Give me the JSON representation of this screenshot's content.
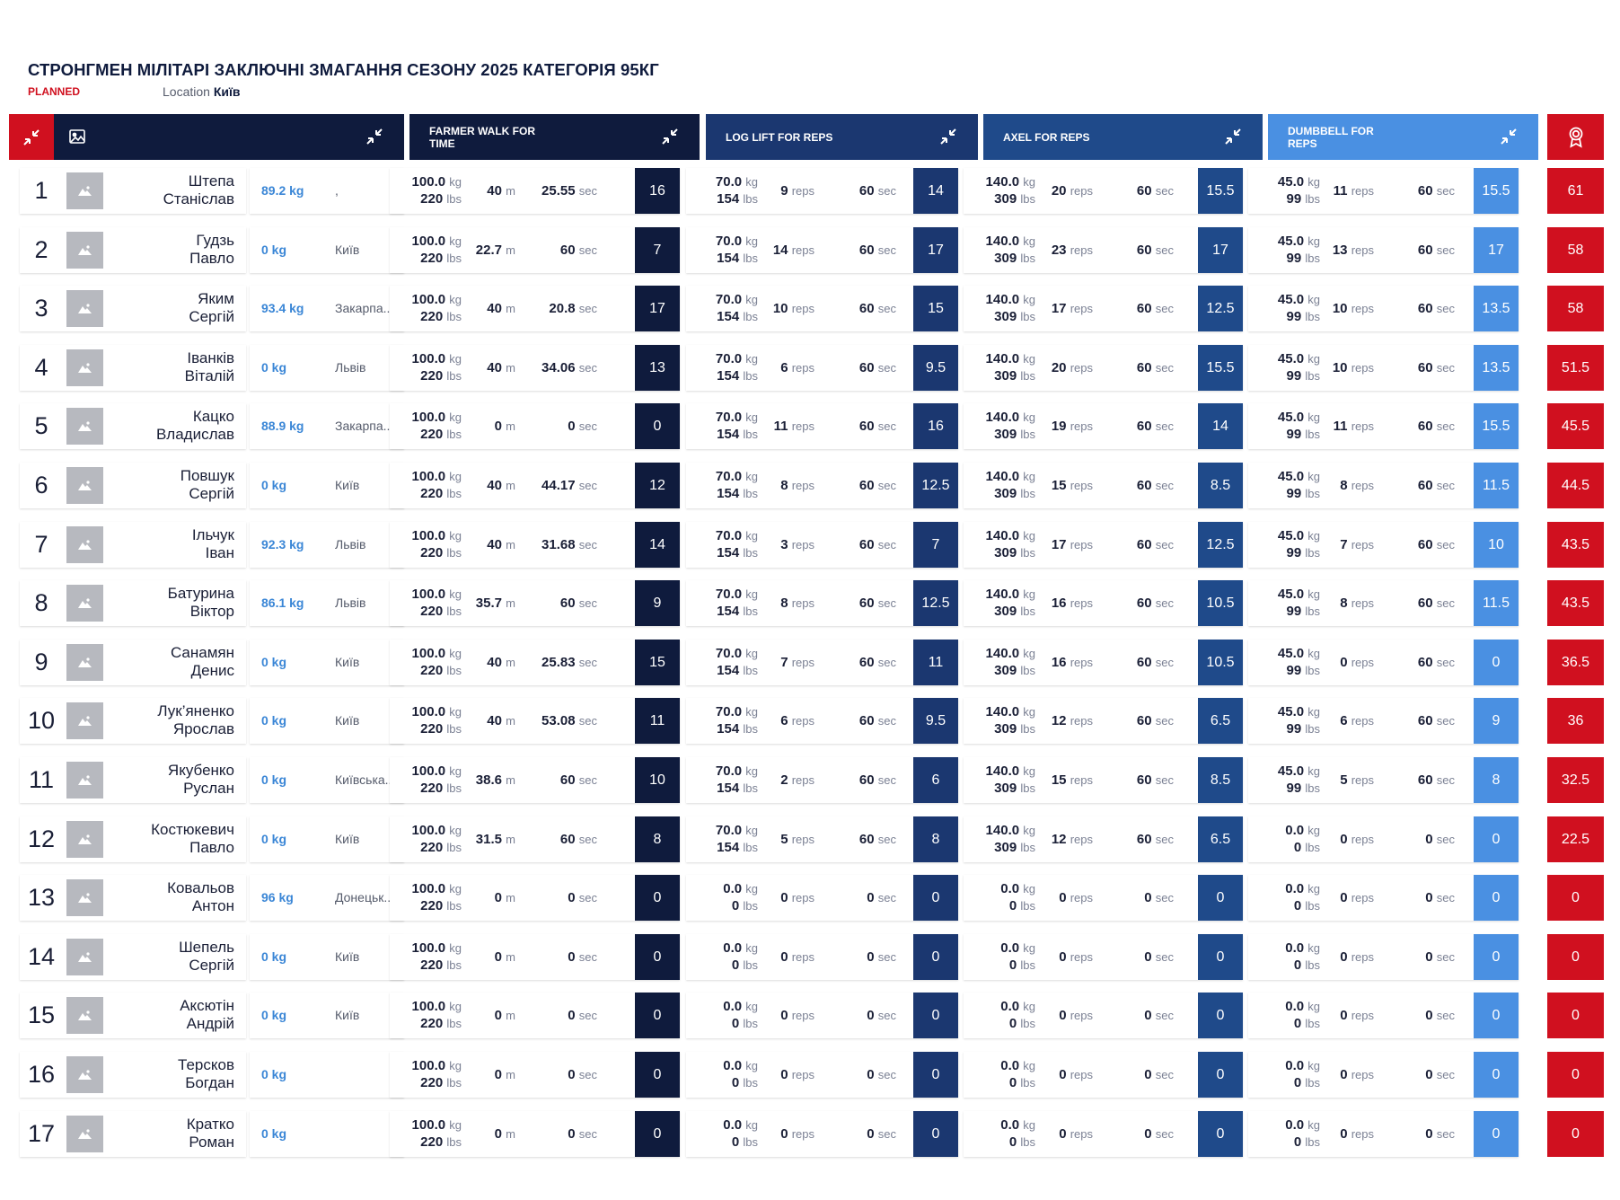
{
  "header": {
    "title": "СТРОНГМЕН МІЛІТАРІ ЗАКЛЮЧНІ ЗМАГАННЯ СЕЗОНУ 2025 КАТЕГОРІЯ 95КГ",
    "status": "PLANNED",
    "location_label": "Location",
    "location_value": "Київ"
  },
  "colors": {
    "navy": "#0f1b3d",
    "blue2": "#1b3770",
    "blue3": "#1f4a8a",
    "blue4": "#4a90e2",
    "red": "#d0101f",
    "weight_blue": "#3a86d6"
  },
  "icons": {
    "collapse": "collapse-arrows-icon",
    "image": "image-icon",
    "award": "award-ribbon-icon",
    "avatar": "avatar-placeholder-icon"
  },
  "events": [
    {
      "label": "FARMER WALK FOR TIME",
      "u1": "m",
      "u2": "sec"
    },
    {
      "label": "LOG LIFT FOR REPS",
      "u1": "reps",
      "u2": "sec"
    },
    {
      "label": "AXEL FOR REPS",
      "u1": "reps",
      "u2": "sec"
    },
    {
      "label": "DUMBBELL FOR REPS",
      "u1": "reps",
      "u2": "sec"
    }
  ],
  "units": {
    "kg": "kg",
    "lbs": "lbs"
  },
  "athletes": [
    {
      "rank": "1",
      "surname": "Штепа",
      "firstname": "Станіслав",
      "bw": "89.2 kg",
      "city": ",",
      "e": [
        [
          "100.0",
          "220",
          "40",
          "25.55",
          "16"
        ],
        [
          "70.0",
          "154",
          "9",
          "60",
          "14"
        ],
        [
          "140.0",
          "309",
          "20",
          "60",
          "15.5"
        ],
        [
          "45.0",
          "99",
          "11",
          "60",
          "15.5"
        ]
      ],
      "total": "61"
    },
    {
      "rank": "2",
      "surname": "Гудзь",
      "firstname": "Павло",
      "bw": "0 kg",
      "city": "Київ",
      "e": [
        [
          "100.0",
          "220",
          "22.7",
          "60",
          "7"
        ],
        [
          "70.0",
          "154",
          "14",
          "60",
          "17"
        ],
        [
          "140.0",
          "309",
          "23",
          "60",
          "17"
        ],
        [
          "45.0",
          "99",
          "13",
          "60",
          "17"
        ]
      ],
      "total": "58"
    },
    {
      "rank": "3",
      "surname": "Яким",
      "firstname": "Сергій",
      "bw": "93.4 kg",
      "city": "Закарпа...",
      "e": [
        [
          "100.0",
          "220",
          "40",
          "20.8",
          "17"
        ],
        [
          "70.0",
          "154",
          "10",
          "60",
          "15"
        ],
        [
          "140.0",
          "309",
          "17",
          "60",
          "12.5"
        ],
        [
          "45.0",
          "99",
          "10",
          "60",
          "13.5"
        ]
      ],
      "total": "58"
    },
    {
      "rank": "4",
      "surname": "Іванків",
      "firstname": "Віталій",
      "bw": "0 kg",
      "city": "Львів",
      "e": [
        [
          "100.0",
          "220",
          "40",
          "34.06",
          "13"
        ],
        [
          "70.0",
          "154",
          "6",
          "60",
          "9.5"
        ],
        [
          "140.0",
          "309",
          "20",
          "60",
          "15.5"
        ],
        [
          "45.0",
          "99",
          "10",
          "60",
          "13.5"
        ]
      ],
      "total": "51.5"
    },
    {
      "rank": "5",
      "surname": "Кацко",
      "firstname": "Владислав",
      "bw": "88.9 kg",
      "city": "Закарпа...",
      "e": [
        [
          "100.0",
          "220",
          "0",
          "0",
          "0"
        ],
        [
          "70.0",
          "154",
          "11",
          "60",
          "16"
        ],
        [
          "140.0",
          "309",
          "19",
          "60",
          "14"
        ],
        [
          "45.0",
          "99",
          "11",
          "60",
          "15.5"
        ]
      ],
      "total": "45.5"
    },
    {
      "rank": "6",
      "surname": "Повшук",
      "firstname": "Сергій",
      "bw": "0 kg",
      "city": "Київ",
      "e": [
        [
          "100.0",
          "220",
          "40",
          "44.17",
          "12"
        ],
        [
          "70.0",
          "154",
          "8",
          "60",
          "12.5"
        ],
        [
          "140.0",
          "309",
          "15",
          "60",
          "8.5"
        ],
        [
          "45.0",
          "99",
          "8",
          "60",
          "11.5"
        ]
      ],
      "total": "44.5"
    },
    {
      "rank": "7",
      "surname": "Ільчук",
      "firstname": "Іван",
      "bw": "92.3 kg",
      "city": "Львів",
      "e": [
        [
          "100.0",
          "220",
          "40",
          "31.68",
          "14"
        ],
        [
          "70.0",
          "154",
          "3",
          "60",
          "7"
        ],
        [
          "140.0",
          "309",
          "17",
          "60",
          "12.5"
        ],
        [
          "45.0",
          "99",
          "7",
          "60",
          "10"
        ]
      ],
      "total": "43.5"
    },
    {
      "rank": "8",
      "surname": "Батурина",
      "firstname": "Віктор",
      "bw": "86.1 kg",
      "city": "Львів",
      "e": [
        [
          "100.0",
          "220",
          "35.7",
          "60",
          "9"
        ],
        [
          "70.0",
          "154",
          "8",
          "60",
          "12.5"
        ],
        [
          "140.0",
          "309",
          "16",
          "60",
          "10.5"
        ],
        [
          "45.0",
          "99",
          "8",
          "60",
          "11.5"
        ]
      ],
      "total": "43.5"
    },
    {
      "rank": "9",
      "surname": "Санамян",
      "firstname": "Денис",
      "bw": "0 kg",
      "city": "Київ",
      "e": [
        [
          "100.0",
          "220",
          "40",
          "25.83",
          "15"
        ],
        [
          "70.0",
          "154",
          "7",
          "60",
          "11"
        ],
        [
          "140.0",
          "309",
          "16",
          "60",
          "10.5"
        ],
        [
          "45.0",
          "99",
          "0",
          "60",
          "0"
        ]
      ],
      "total": "36.5"
    },
    {
      "rank": "10",
      "surname": "Лук’яненко",
      "firstname": "Ярослав",
      "bw": "0 kg",
      "city": "Київ",
      "e": [
        [
          "100.0",
          "220",
          "40",
          "53.08",
          "11"
        ],
        [
          "70.0",
          "154",
          "6",
          "60",
          "9.5"
        ],
        [
          "140.0",
          "309",
          "12",
          "60",
          "6.5"
        ],
        [
          "45.0",
          "99",
          "6",
          "60",
          "9"
        ]
      ],
      "total": "36"
    },
    {
      "rank": "11",
      "surname": "Якубенко",
      "firstname": "Руслан",
      "bw": "0 kg",
      "city": "Київська...",
      "e": [
        [
          "100.0",
          "220",
          "38.6",
          "60",
          "10"
        ],
        [
          "70.0",
          "154",
          "2",
          "60",
          "6"
        ],
        [
          "140.0",
          "309",
          "15",
          "60",
          "8.5"
        ],
        [
          "45.0",
          "99",
          "5",
          "60",
          "8"
        ]
      ],
      "total": "32.5"
    },
    {
      "rank": "12",
      "surname": "Костюкевич",
      "firstname": "Павло",
      "bw": "0 kg",
      "city": "Київ",
      "e": [
        [
          "100.0",
          "220",
          "31.5",
          "60",
          "8"
        ],
        [
          "70.0",
          "154",
          "5",
          "60",
          "8"
        ],
        [
          "140.0",
          "309",
          "12",
          "60",
          "6.5"
        ],
        [
          "0.0",
          "0",
          "0",
          "0",
          "0"
        ]
      ],
      "total": "22.5"
    },
    {
      "rank": "13",
      "surname": "Ковальов",
      "firstname": "Антон",
      "bw": "96 kg",
      "city": "Донецьк...",
      "e": [
        [
          "100.0",
          "220",
          "0",
          "0",
          "0"
        ],
        [
          "0.0",
          "0",
          "0",
          "0",
          "0"
        ],
        [
          "0.0",
          "0",
          "0",
          "0",
          "0"
        ],
        [
          "0.0",
          "0",
          "0",
          "0",
          "0"
        ]
      ],
      "total": "0"
    },
    {
      "rank": "14",
      "surname": "Шепель",
      "firstname": "Сергій",
      "bw": "0 kg",
      "city": "Київ",
      "e": [
        [
          "100.0",
          "220",
          "0",
          "0",
          "0"
        ],
        [
          "0.0",
          "0",
          "0",
          "0",
          "0"
        ],
        [
          "0.0",
          "0",
          "0",
          "0",
          "0"
        ],
        [
          "0.0",
          "0",
          "0",
          "0",
          "0"
        ]
      ],
      "total": "0"
    },
    {
      "rank": "15",
      "surname": "Аксютін",
      "firstname": "Андрій",
      "bw": "0 kg",
      "city": "Київ",
      "e": [
        [
          "100.0",
          "220",
          "0",
          "0",
          "0"
        ],
        [
          "0.0",
          "0",
          "0",
          "0",
          "0"
        ],
        [
          "0.0",
          "0",
          "0",
          "0",
          "0"
        ],
        [
          "0.0",
          "0",
          "0",
          "0",
          "0"
        ]
      ],
      "total": "0"
    },
    {
      "rank": "16",
      "surname": "Терсков",
      "firstname": "Богдан",
      "bw": "0 kg",
      "city": "",
      "e": [
        [
          "100.0",
          "220",
          "0",
          "0",
          "0"
        ],
        [
          "0.0",
          "0",
          "0",
          "0",
          "0"
        ],
        [
          "0.0",
          "0",
          "0",
          "0",
          "0"
        ],
        [
          "0.0",
          "0",
          "0",
          "0",
          "0"
        ]
      ],
      "total": "0"
    },
    {
      "rank": "17",
      "surname": "Кратко",
      "firstname": "Роман",
      "bw": "0 kg",
      "city": "",
      "e": [
        [
          "100.0",
          "220",
          "0",
          "0",
          "0"
        ],
        [
          "0.0",
          "0",
          "0",
          "0",
          "0"
        ],
        [
          "0.0",
          "0",
          "0",
          "0",
          "0"
        ],
        [
          "0.0",
          "0",
          "0",
          "0",
          "0"
        ]
      ],
      "total": "0"
    }
  ]
}
